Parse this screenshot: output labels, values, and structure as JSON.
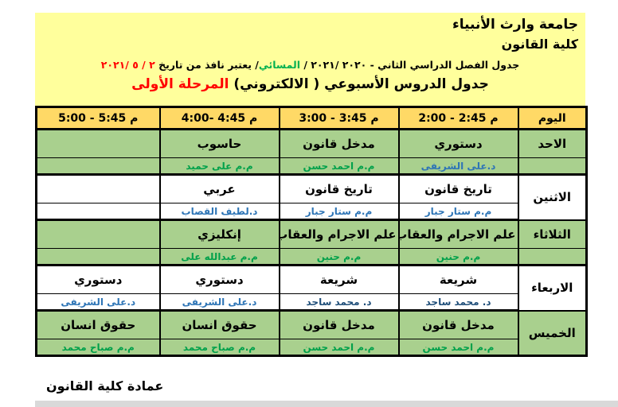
{
  "header": {
    "university": "جامعة وارث الأنبياء",
    "college": "كلية القانون",
    "semester_line": {
      "part1": "جدول الفصل الدراسي الثاني - ٢٠٢٠ /٢٠٢١ / ",
      "evening": "المسائي",
      "part2": "/ يعتبر نافذ من تاريخ ",
      "date": "٢ / ٥ /٢٠٢١"
    },
    "title_line": {
      "main": "جدول الدروس الأسبوعي ( الالكتروني) ",
      "stage": "المرحلة الأولى"
    }
  },
  "table": {
    "day_header": "اليوم",
    "time_headers": [
      "2:00 - 2:45 م",
      "3:00 - 3:45 م",
      "4:00- 4:45 م",
      "5:00 - 5:45 م"
    ],
    "days": [
      {
        "name": "الاحد",
        "bg": "green",
        "merged": false,
        "slots": [
          {
            "subject": "دستوري",
            "teacher": "د.على الشريفى",
            "tc": "tBlue"
          },
          {
            "subject": "مدخل قانون",
            "teacher": "م.م احمد حسن",
            "tc": "tGreen"
          },
          {
            "subject": "حاسوب",
            "teacher": "م.م على حميد",
            "tc": "tGreen"
          },
          {
            "subject": "",
            "teacher": "",
            "tc": "tGreen"
          }
        ]
      },
      {
        "name": "الاثنين",
        "bg": "white",
        "merged": true,
        "slots": [
          {
            "subject": "تاريخ قانون",
            "teacher": "م.م ستار جبار",
            "tc": "tBlue"
          },
          {
            "subject": "تاريخ قانون",
            "teacher": "م.م ستار جبار",
            "tc": "tBlue"
          },
          {
            "subject": "عربي",
            "teacher": "د.لطيف القصاب",
            "tc": "tBlue"
          },
          {
            "subject": "",
            "teacher": "",
            "tc": "tBlue"
          }
        ]
      },
      {
        "name": "الثلاثاء",
        "bg": "green",
        "merged": false,
        "slots": [
          {
            "subject": "علم الاجرام والعقاب",
            "teacher": "م.م حنين",
            "tc": "tGreen"
          },
          {
            "subject": "علم الاجرام والعقاب",
            "teacher": "م.م حنين",
            "tc": "tGreen"
          },
          {
            "subject": "إنكليزي",
            "teacher": "م.م عبدالله على",
            "tc": "tGreen"
          },
          {
            "subject": "",
            "teacher": "",
            "tc": "tGreen"
          }
        ]
      },
      {
        "name": "الاربعاء",
        "bg": "white",
        "merged": true,
        "slots": [
          {
            "subject": "شريعة",
            "teacher": "د. محمد ساجد",
            "tc": "tNavy"
          },
          {
            "subject": "شريعة",
            "teacher": "د. محمد ساجد",
            "tc": "tNavy"
          },
          {
            "subject": "دستوري",
            "teacher": "د.على الشريفى",
            "tc": "tBlue"
          },
          {
            "subject": "دستوري",
            "teacher": "د.على الشريفى",
            "tc": "tBlue"
          }
        ]
      },
      {
        "name": "الخميس",
        "bg": "green",
        "merged": true,
        "slots": [
          {
            "subject": "مدخل قانون",
            "teacher": "م.م احمد حسن",
            "tc": "tGreen"
          },
          {
            "subject": "مدخل قانون",
            "teacher": "م.م احمد حسن",
            "tc": "tGreen"
          },
          {
            "subject": "حقوق انسان",
            "teacher": "م.م صباح محمد",
            "tc": "tGreen"
          },
          {
            "subject": "حقوق انسان",
            "teacher": "م.م صباح محمد",
            "tc": "tGreen"
          }
        ]
      }
    ]
  },
  "footer": {
    "text": "عمادة كلية القانون"
  },
  "colors": {
    "paleYellow": "#FFFF9C",
    "gold": "#FFD966",
    "cellGreen": "#A9D08E",
    "red": "#FF0000",
    "eveningGreen": "#00B050",
    "tGreen": "#00A14B",
    "tBlue": "#2E75B6",
    "tNavy": "#1F4E79"
  }
}
